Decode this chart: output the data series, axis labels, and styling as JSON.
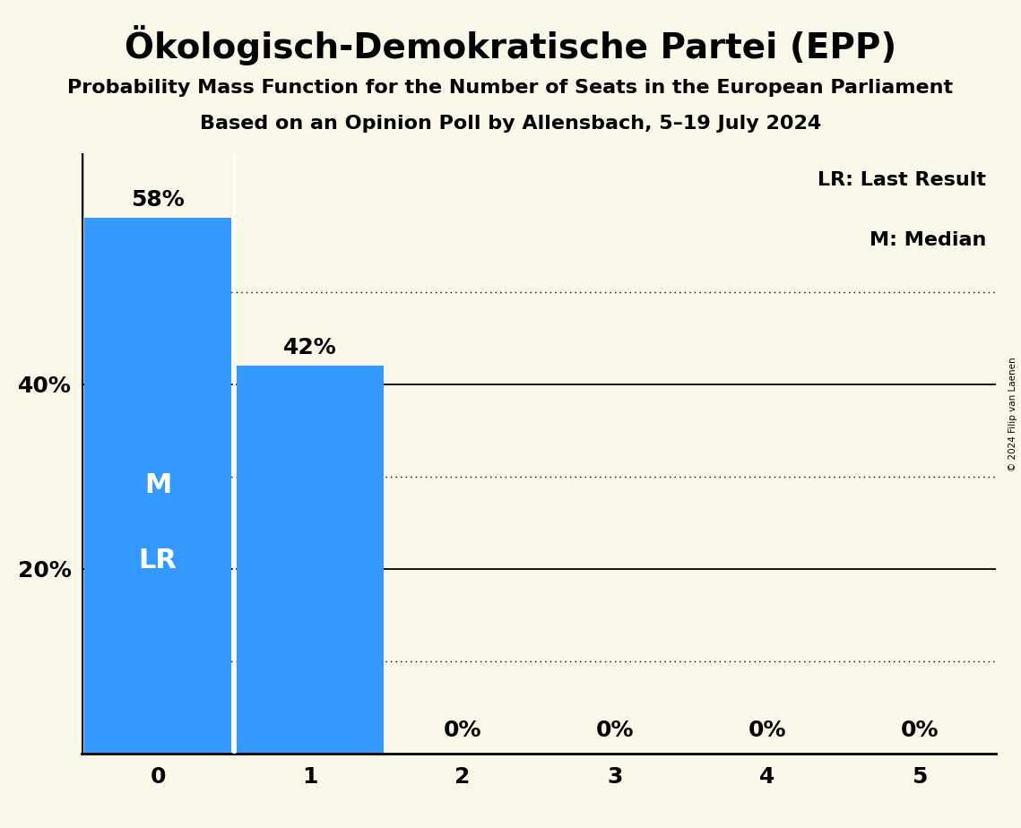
{
  "title": "Ökologisch-Demokratische Partei (EPP)",
  "subtitle1": "Probability Mass Function for the Number of Seats in the European Parliament",
  "subtitle2": "Based on an Opinion Poll by Allensbach, 5–19 July 2024",
  "copyright": "© 2024 Filip van Laenen",
  "categories": [
    0,
    1,
    2,
    3,
    4,
    5
  ],
  "values": [
    0.58,
    0.42,
    0.0,
    0.0,
    0.0,
    0.0
  ],
  "bar_color": "#3399ff",
  "background_color": "#faf8e8",
  "bar_labels": [
    "58%",
    "42%",
    "0%",
    "0%",
    "0%",
    "0%"
  ],
  "ylabel_ticks": [
    0.0,
    0.2,
    0.4
  ],
  "ylabel_labels": [
    "",
    "20%",
    "40%"
  ],
  "ylim": [
    0,
    0.65
  ],
  "median_bar": 0,
  "last_result_bar": 0,
  "legend_lr": "LR: Last Result",
  "legend_m": "M: Median",
  "title_fontsize": 28,
  "subtitle_fontsize": 16,
  "bar_label_fontsize": 18,
  "inside_label_fontsize": 22,
  "tick_fontsize": 18
}
